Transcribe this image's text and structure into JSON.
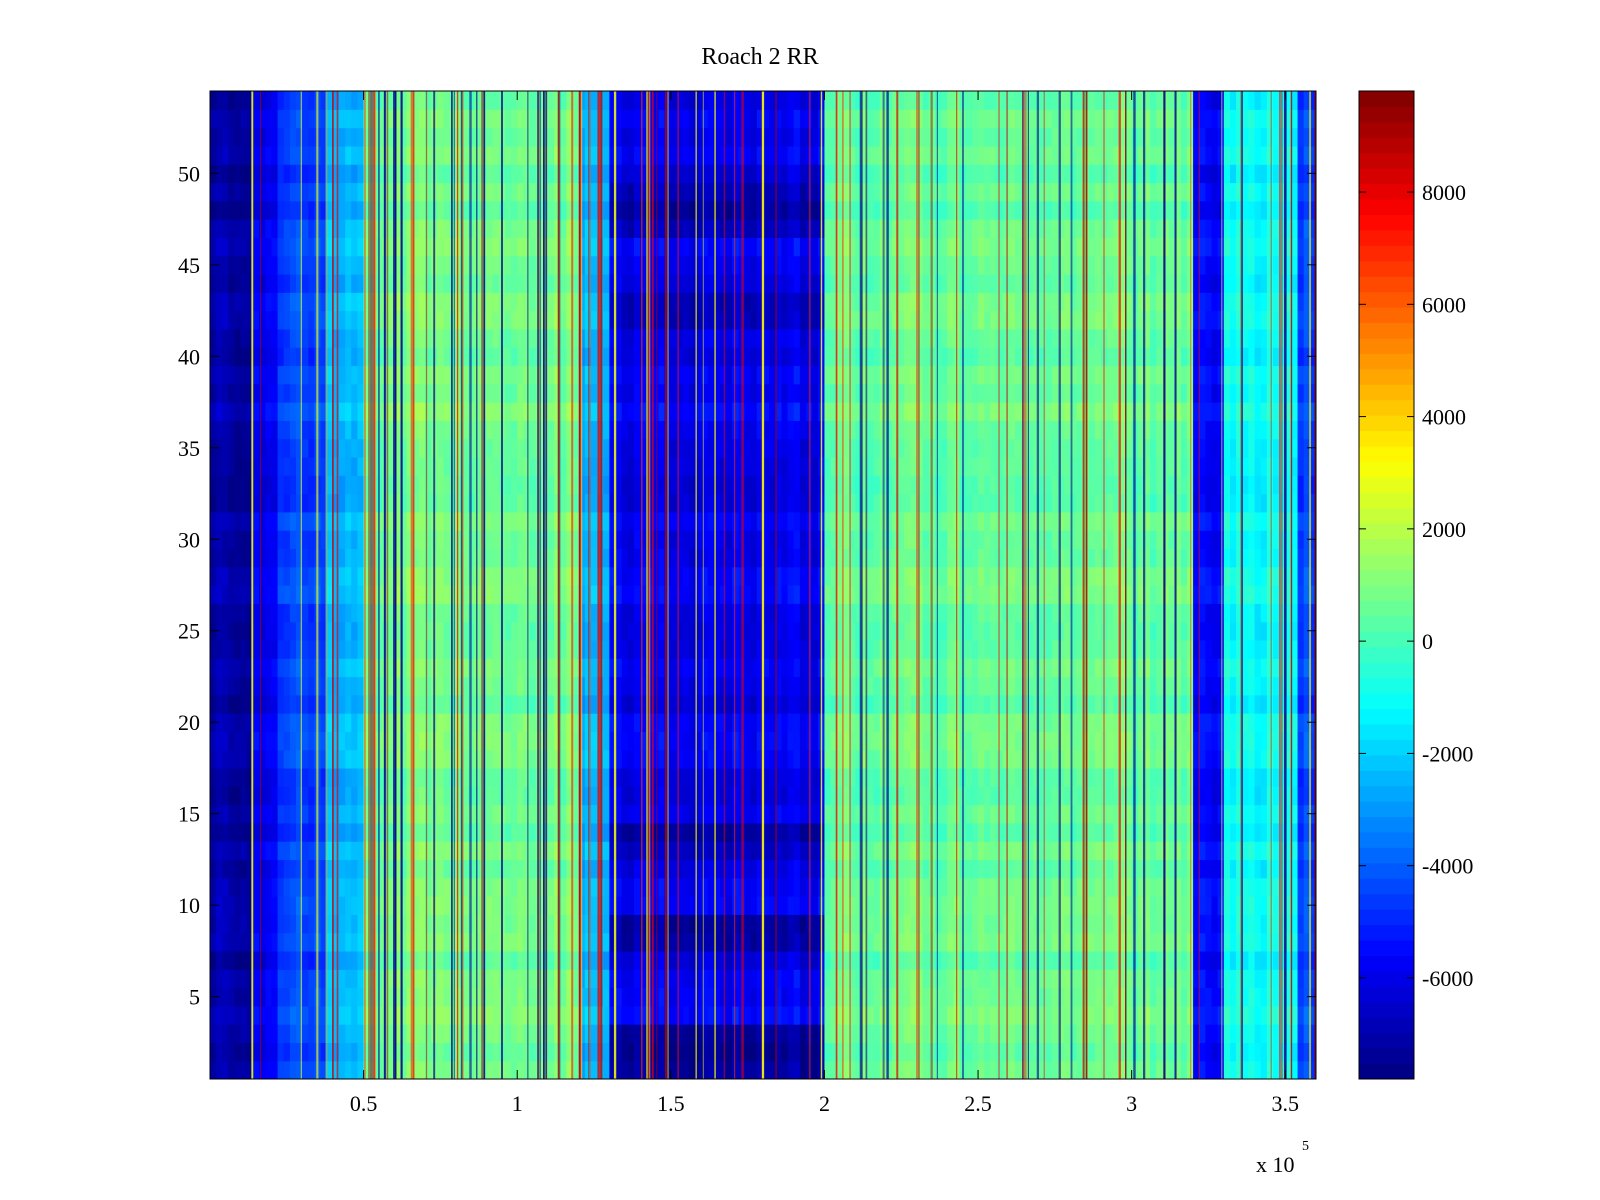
{
  "chart_data": {
    "type": "heatmap",
    "title": "Roach 2 RR",
    "xlabel": "",
    "ylabel": "",
    "x_multiplier_label": "x 10",
    "x_multiplier_exponent": "5",
    "xlim": [
      0,
      360000
    ],
    "ylim": [
      0.5,
      54.5
    ],
    "xticks": [
      {
        "value": 50000,
        "label": "0.5"
      },
      {
        "value": 100000,
        "label": "1"
      },
      {
        "value": 150000,
        "label": "1.5"
      },
      {
        "value": 200000,
        "label": "2"
      },
      {
        "value": 250000,
        "label": "2.5"
      },
      {
        "value": 300000,
        "label": "3"
      },
      {
        "value": 350000,
        "label": "3.5"
      }
    ],
    "yticks": [
      {
        "value": 5,
        "label": "5"
      },
      {
        "value": 10,
        "label": "10"
      },
      {
        "value": 15,
        "label": "15"
      },
      {
        "value": 20,
        "label": "20"
      },
      {
        "value": 25,
        "label": "25"
      },
      {
        "value": 30,
        "label": "30"
      },
      {
        "value": 35,
        "label": "35"
      },
      {
        "value": 40,
        "label": "40"
      },
      {
        "value": 45,
        "label": "45"
      },
      {
        "value": 50,
        "label": "50"
      }
    ],
    "colorbar": {
      "colormap": "jet",
      "clim": [
        -7800,
        9800
      ],
      "ticks": [
        {
          "value": 8000,
          "label": "8000"
        },
        {
          "value": 6000,
          "label": "6000"
        },
        {
          "value": 4000,
          "label": "4000"
        },
        {
          "value": 2000,
          "label": "2000"
        },
        {
          "value": 0,
          "label": "0"
        },
        {
          "value": -2000,
          "label": "-2000"
        },
        {
          "value": -4000,
          "label": "-4000"
        },
        {
          "value": -6000,
          "label": "-6000"
        }
      ]
    },
    "rows": 54,
    "column_bands": [
      {
        "x": [
          0,
          15000
        ],
        "value": -7200
      },
      {
        "x": [
          15000,
          23000
        ],
        "value": -6200
      },
      {
        "x": [
          23000,
          38000
        ],
        "value": -4500
      },
      {
        "x": [
          38000,
          50000
        ],
        "value": -2500
      },
      {
        "x": [
          50000,
          120000
        ],
        "value": 800
      },
      {
        "x": [
          120000,
          130000
        ],
        "value": -2500
      },
      {
        "x": [
          130000,
          200000
        ],
        "value": -5800
      },
      {
        "x": [
          200000,
          320000
        ],
        "value": 600
      },
      {
        "x": [
          320000,
          330000
        ],
        "value": -5500
      },
      {
        "x": [
          330000,
          355000
        ],
        "value": -1000
      },
      {
        "x": [
          355000,
          360000
        ],
        "value": -4500
      }
    ],
    "dark_row_bands": [
      {
        "y": [
          1,
          3
        ],
        "x": [
          130000,
          200000
        ],
        "value": -7300
      },
      {
        "y": [
          8,
          9
        ],
        "x": [
          130000,
          200000
        ],
        "value": -7300
      },
      {
        "y": [
          13,
          14
        ],
        "x": [
          130000,
          200000
        ],
        "value": -6800
      },
      {
        "y": [
          42,
          43
        ],
        "x": [
          130000,
          200000
        ],
        "value": -7000
      },
      {
        "y": [
          47,
          49
        ],
        "x": [
          130000,
          200000
        ],
        "value": -6800
      }
    ]
  }
}
